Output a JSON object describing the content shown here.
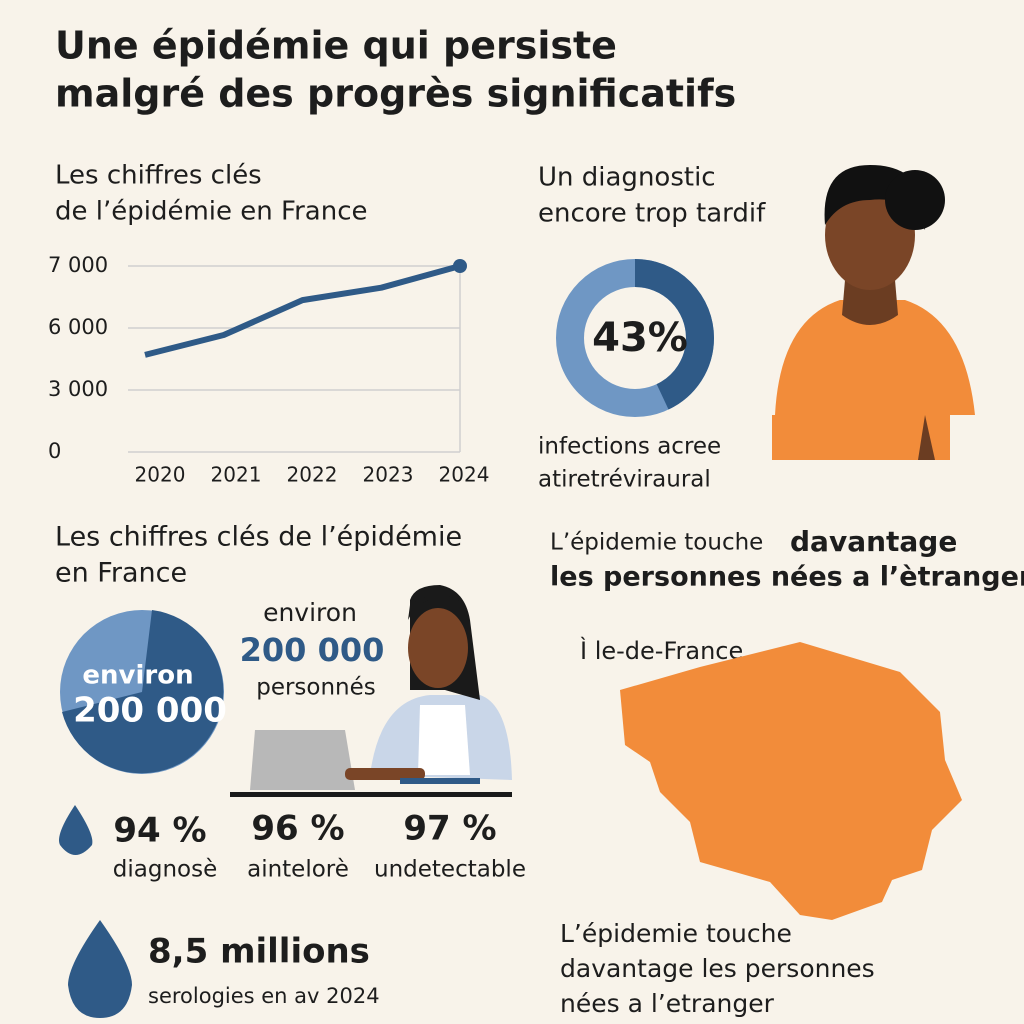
{
  "title": [
    "Une épidémie qui persiste",
    "malgré des progrès significatifs"
  ],
  "chart_data": [
    {
      "type": "line",
      "title": [
        "Les chiffres clés",
        "de l’épidémie en France"
      ],
      "categories": [
        "2020",
        "2021",
        "2022",
        "2023",
        "2024"
      ],
      "values": [
        4700,
        5660,
        6450,
        6650,
        7000
      ],
      "color": "#2f5a87",
      "ylim": [
        0,
        7000
      ],
      "yticks": [
        0,
        {
          "value": 3000,
          "label": "3 000"
        },
        {
          "value": 6000,
          "label": "6 000"
        },
        {
          "value": 7000,
          "label": "7 000"
        }
      ],
      "grid": true
    },
    {
      "type": "donut",
      "title": [
        "Un diagnostic",
        "encore trop tardif"
      ],
      "values": [
        43
      ],
      "value_labels": [
        "43%"
      ],
      "color": "#2f5a87",
      "track_color": "#6f97c4",
      "caption": [
        "infections acree",
        "atiretréviraural"
      ]
    }
  ],
  "key_figures": {
    "title": [
      "Les chiffres clés de l’épidémie",
      "en France"
    ],
    "pie_label": [
      "environ",
      "200 000"
    ],
    "callout": [
      "environ",
      "200 000",
      "personnés"
    ],
    "stats": [
      {
        "value": "94 %",
        "label": "diagnosè"
      },
      {
        "value": "96 %",
        "label": "aintelorè"
      },
      {
        "value": "97 %",
        "label": "undetectable"
      }
    ],
    "serologies": {
      "value": "8,5 millions",
      "label": "serologies en av 2024"
    }
  },
  "region": {
    "title": [
      "L’épidemie touche",
      "davantage",
      "les personnes nées a l’ètranger"
    ],
    "name": "Ì le-de-France",
    "caption": [
      "L’épidemie touche",
      "davantage les personnes",
      "nées a l’etranger"
    ]
  }
}
